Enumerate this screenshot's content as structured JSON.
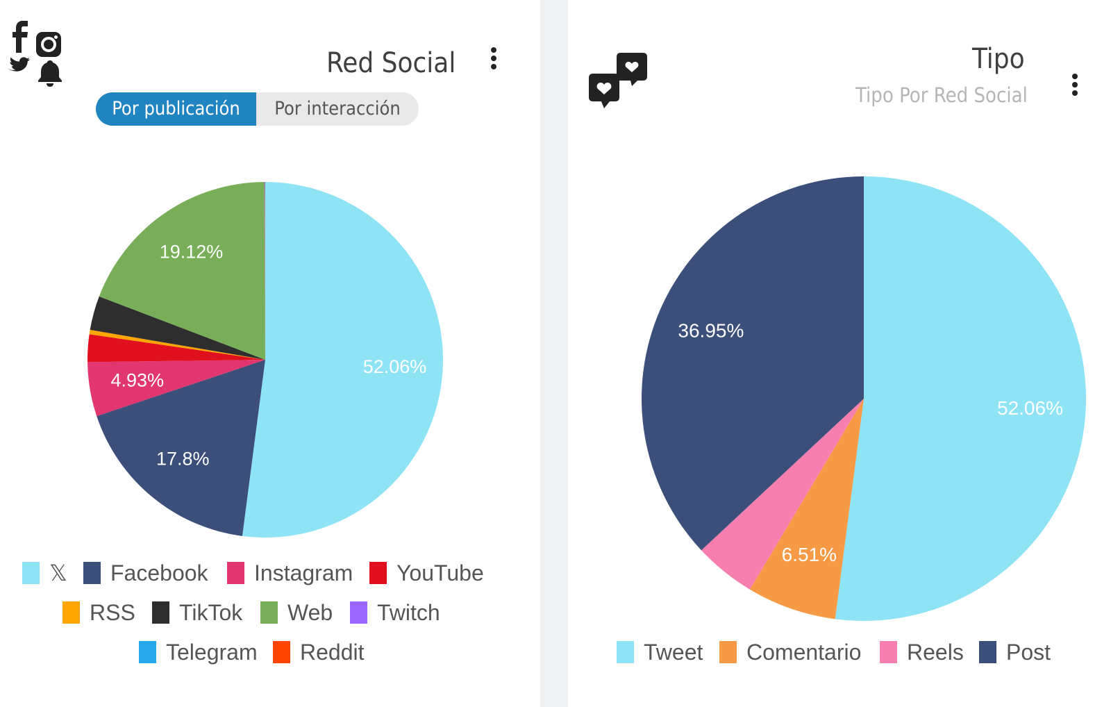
{
  "left_panel": {
    "title": "Red Social",
    "toggle": {
      "active_label": "Por publicación",
      "inactive_label": "Por interacción"
    },
    "icons": [
      "facebook-icon",
      "instagram-icon",
      "twitter-icon",
      "bell-icon"
    ],
    "menu_icon": "kebab-menu-icon"
  },
  "right_panel": {
    "title": "Tipo",
    "subtitle": "Tipo Por Red Social",
    "icons": [
      "chat-heart-icon"
    ],
    "menu_icon": "kebab-menu-icon"
  },
  "chart_data": [
    {
      "type": "pie",
      "labels": [
        "𝕏",
        "Facebook",
        "Instagram",
        "YouTube",
        "RSS",
        "TikTok",
        "Web",
        "Twitch",
        "Telegram",
        "Reddit"
      ],
      "values": [
        52.06,
        17.8,
        4.93,
        2.5,
        0.4,
        3.1,
        19.12,
        0.03,
        0.03,
        0.03
      ],
      "value_labels": [
        "52.06%",
        "17.8%",
        "4.93%",
        "",
        "",
        "",
        "19.12%",
        "",
        "",
        ""
      ],
      "colors": [
        "#8ee3f5",
        "#3c4f7a",
        "#e23670",
        "#e0101f",
        "#ffa500",
        "#2e2e2e",
        "#77ae57",
        "#9966ff",
        "#28a8ea",
        "#ff4500"
      ],
      "legend_position": "bottom"
    },
    {
      "type": "pie",
      "labels": [
        "Tweet",
        "Comentario",
        "Reels",
        "Post"
      ],
      "values": [
        52.06,
        6.51,
        4.48,
        36.95
      ],
      "value_labels": [
        "52.06%",
        "6.51%",
        "",
        "36.95%"
      ],
      "colors": [
        "#8ee3f5",
        "#f69a46",
        "#f77fb0",
        "#3c4f7a"
      ],
      "legend_position": "bottom"
    }
  ]
}
